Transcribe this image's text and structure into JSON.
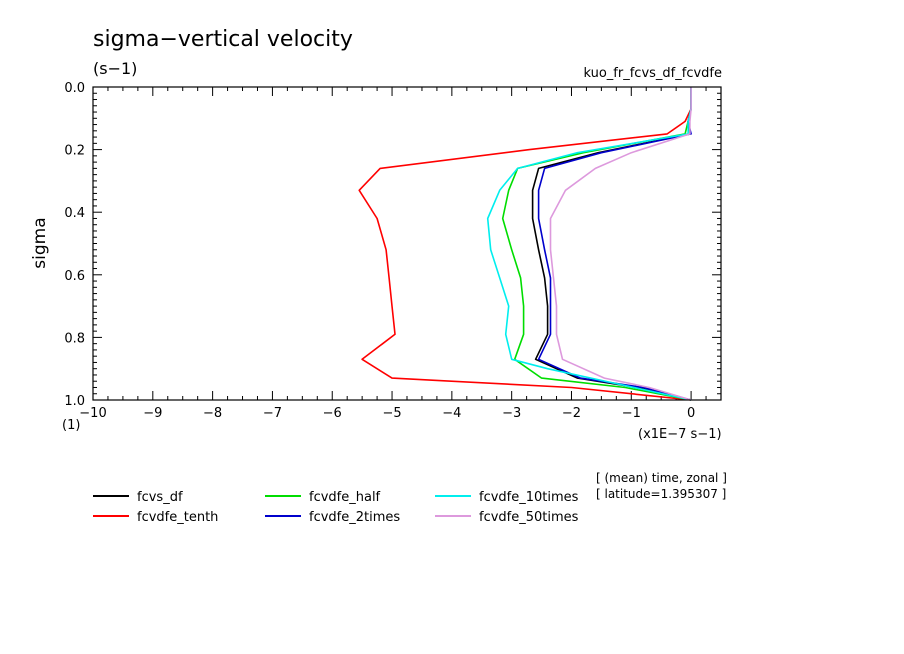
{
  "header": {
    "title": "sigma−vertical velocity",
    "units": "(s−1)",
    "run_name": "kuo_fr_fcvs_df_fcvdfe"
  },
  "annotation": {
    "line1": "[ (mean) time, zonal ]",
    "line2": "[ latitude=1.395307 ]"
  },
  "axes": {
    "ylabel": "sigma",
    "x_scale_label": "(x1E−7 s−1)",
    "y_unit_label": "(1)"
  },
  "chart_data": {
    "type": "line",
    "title": "sigma−vertical velocity",
    "xlabel": "",
    "ylabel": "sigma",
    "xlim": [
      -10,
      0.5
    ],
    "ylim": [
      1.0,
      0.0
    ],
    "y_inverted": true,
    "x_ticks": [
      -10,
      -9,
      -8,
      -7,
      -6,
      -5,
      -4,
      -3,
      -2,
      -1,
      0
    ],
    "y_ticks": [
      0.0,
      0.2,
      0.4,
      0.6,
      0.8,
      1.0
    ],
    "x_tick_labels": [
      "−10",
      "−9",
      "−8",
      "−7",
      "−6",
      "−5",
      "−4",
      "−3",
      "−2",
      "−1",
      "0"
    ],
    "y_tick_labels": [
      "0.0",
      "0.2",
      "0.4",
      "0.6",
      "0.8",
      "1.0"
    ],
    "grid": false,
    "legend_position": "bottom",
    "series": [
      {
        "name": "fcvs_df",
        "color": "#000000",
        "points": [
          [
            0.0,
            0.0
          ],
          [
            0.0,
            0.03
          ],
          [
            0.0,
            0.07
          ],
          [
            -0.05,
            0.11
          ],
          [
            -0.02,
            0.15
          ],
          [
            -1.55,
            0.21
          ],
          [
            -2.55,
            0.26
          ],
          [
            -2.65,
            0.33
          ],
          [
            -2.65,
            0.42
          ],
          [
            -2.55,
            0.52
          ],
          [
            -2.45,
            0.61
          ],
          [
            -2.4,
            0.7
          ],
          [
            -2.4,
            0.79
          ],
          [
            -2.6,
            0.87
          ],
          [
            -1.9,
            0.93
          ],
          [
            -0.9,
            0.96
          ],
          [
            0.0,
            1.0
          ]
        ]
      },
      {
        "name": "fcvdfe_tenth",
        "color": "#ff0000",
        "points": [
          [
            0.0,
            0.0
          ],
          [
            0.0,
            0.03
          ],
          [
            0.0,
            0.07
          ],
          [
            -0.1,
            0.11
          ],
          [
            -0.4,
            0.15
          ],
          [
            -2.7,
            0.2
          ],
          [
            -5.2,
            0.26
          ],
          [
            -5.55,
            0.33
          ],
          [
            -5.25,
            0.42
          ],
          [
            -5.1,
            0.52
          ],
          [
            -5.05,
            0.61
          ],
          [
            -5.0,
            0.7
          ],
          [
            -4.95,
            0.79
          ],
          [
            -5.5,
            0.87
          ],
          [
            -5.0,
            0.93
          ],
          [
            -2.0,
            0.96
          ],
          [
            0.0,
            1.0
          ]
        ]
      },
      {
        "name": "fcvdfe_half",
        "color": "#00dd00",
        "points": [
          [
            0.0,
            0.0
          ],
          [
            0.0,
            0.03
          ],
          [
            0.0,
            0.07
          ],
          [
            -0.05,
            0.11
          ],
          [
            -0.1,
            0.15
          ],
          [
            -1.8,
            0.21
          ],
          [
            -2.9,
            0.26
          ],
          [
            -3.05,
            0.33
          ],
          [
            -3.15,
            0.42
          ],
          [
            -3.0,
            0.52
          ],
          [
            -2.85,
            0.61
          ],
          [
            -2.8,
            0.7
          ],
          [
            -2.8,
            0.79
          ],
          [
            -2.95,
            0.87
          ],
          [
            -2.5,
            0.93
          ],
          [
            -1.1,
            0.96
          ],
          [
            0.0,
            1.0
          ]
        ]
      },
      {
        "name": "fcvdfe_2times",
        "color": "#0000cc",
        "points": [
          [
            0.0,
            0.0
          ],
          [
            0.0,
            0.03
          ],
          [
            0.0,
            0.07
          ],
          [
            -0.05,
            0.11
          ],
          [
            0.0,
            0.15
          ],
          [
            -1.5,
            0.21
          ],
          [
            -2.45,
            0.26
          ],
          [
            -2.55,
            0.33
          ],
          [
            -2.55,
            0.42
          ],
          [
            -2.45,
            0.52
          ],
          [
            -2.35,
            0.61
          ],
          [
            -2.35,
            0.7
          ],
          [
            -2.35,
            0.79
          ],
          [
            -2.55,
            0.87
          ],
          [
            -1.85,
            0.93
          ],
          [
            -0.8,
            0.96
          ],
          [
            0.0,
            1.0
          ]
        ]
      },
      {
        "name": "fcvdfe_10times",
        "color": "#00eeee",
        "points": [
          [
            0.0,
            0.0
          ],
          [
            0.0,
            0.03
          ],
          [
            0.0,
            0.07
          ],
          [
            -0.05,
            0.11
          ],
          [
            -0.05,
            0.15
          ],
          [
            -1.9,
            0.21
          ],
          [
            -2.9,
            0.26
          ],
          [
            -3.2,
            0.33
          ],
          [
            -3.4,
            0.42
          ],
          [
            -3.35,
            0.52
          ],
          [
            -3.2,
            0.61
          ],
          [
            -3.05,
            0.7
          ],
          [
            -3.1,
            0.79
          ],
          [
            -3.0,
            0.87
          ],
          [
            -2.4,
            0.9
          ],
          [
            -1.2,
            0.95
          ],
          [
            0.0,
            1.0
          ]
        ]
      },
      {
        "name": "fcvdfe_50times",
        "color": "#dd99dd",
        "points": [
          [
            0.0,
            0.0
          ],
          [
            0.0,
            0.03
          ],
          [
            0.0,
            0.07
          ],
          [
            -0.02,
            0.11
          ],
          [
            -0.02,
            0.15
          ],
          [
            -1.0,
            0.21
          ],
          [
            -1.6,
            0.26
          ],
          [
            -2.1,
            0.33
          ],
          [
            -2.35,
            0.42
          ],
          [
            -2.35,
            0.52
          ],
          [
            -2.3,
            0.61
          ],
          [
            -2.25,
            0.7
          ],
          [
            -2.25,
            0.79
          ],
          [
            -2.15,
            0.87
          ],
          [
            -1.45,
            0.93
          ],
          [
            -0.7,
            0.96
          ],
          [
            0.0,
            1.0
          ]
        ]
      }
    ]
  }
}
